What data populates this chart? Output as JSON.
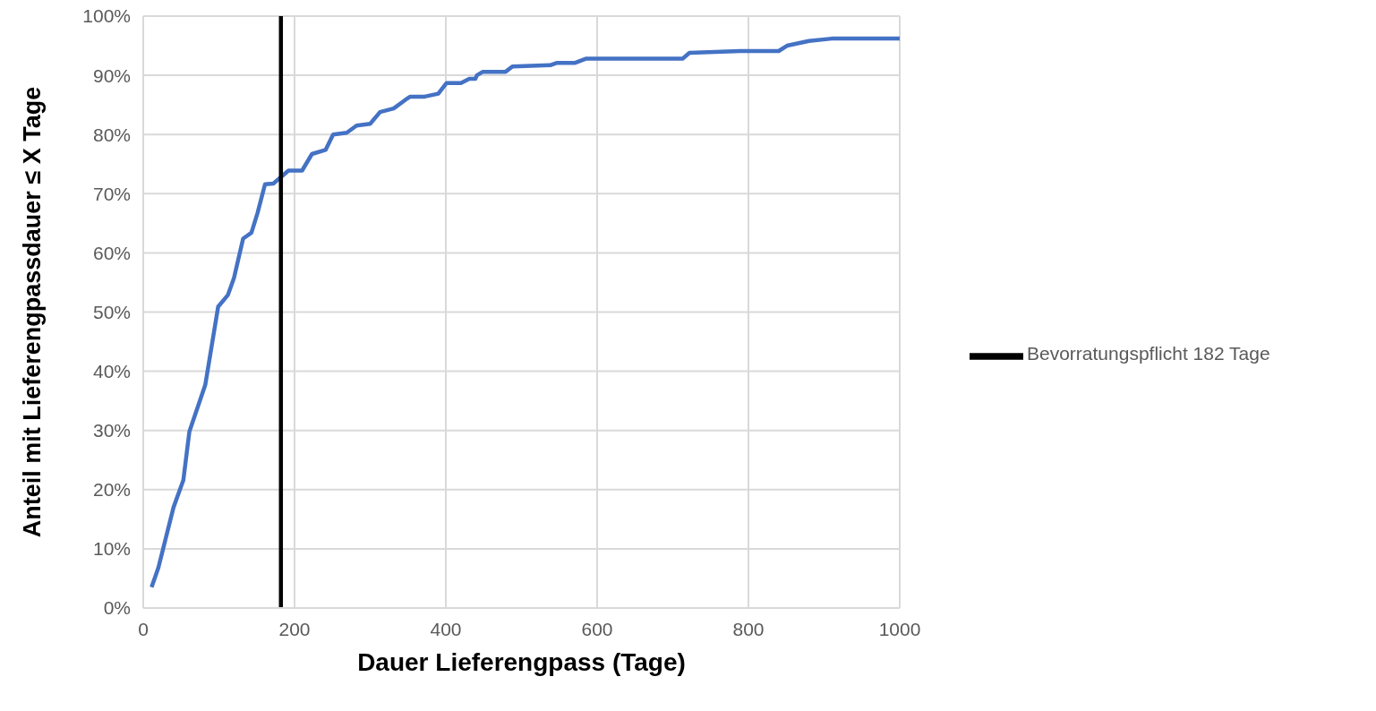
{
  "chart_data": {
    "type": "line",
    "xlabel": "Dauer Lieferengpass (Tage)",
    "ylabel": "Anteil mit Lieferengpassdauer ≤ X Tage",
    "series": [
      {
        "color": "#4472c4",
        "x": [
          11,
          20,
          40,
          53,
          61,
          82,
          99,
          112,
          120,
          132,
          143,
          151,
          161,
          172,
          192,
          210,
          223,
          241,
          251,
          269,
          282,
          300,
          313,
          331,
          347,
          353,
          372,
          390,
          401,
          418,
          420,
          431,
          439,
          441,
          449,
          479,
          488,
          538,
          547,
          571,
          585,
          713,
          722,
          789,
          840,
          851,
          880,
          910,
          1000
        ],
        "values": [
          3.5,
          6.8,
          17.0,
          21.6,
          29.8,
          37.7,
          50.9,
          52.9,
          55.8,
          62.4,
          63.4,
          66.7,
          71.6,
          71.7,
          73.9,
          73.9,
          76.7,
          77.4,
          80.0,
          80.3,
          81.5,
          81.8,
          83.8,
          84.4,
          85.9,
          86.4,
          86.4,
          86.9,
          88.7,
          88.7,
          88.7,
          89.4,
          89.4,
          90.0,
          90.6,
          90.6,
          91.5,
          91.7,
          92.1,
          92.1,
          92.8,
          92.8,
          93.8,
          94.1,
          94.1,
          95.0,
          95.8,
          96.2,
          96.2
        ]
      },
      {
        "name": "Bevorratungspflicht 182 Tage",
        "color": "#000000",
        "x": [
          182,
          182
        ],
        "values": [
          0,
          100
        ]
      }
    ],
    "xlim": [
      0,
      1000
    ],
    "xticks": [
      0,
      200,
      400,
      600,
      800,
      1000
    ],
    "ylim": [
      0,
      100
    ],
    "yticks": [
      {
        "value": 0,
        "label": "0%"
      },
      {
        "value": 10,
        "label": "10%"
      },
      {
        "value": 20,
        "label": "20%"
      },
      {
        "value": 30,
        "label": "30%"
      },
      {
        "value": 40,
        "label": "40%"
      },
      {
        "value": 50,
        "label": "50%"
      },
      {
        "value": 60,
        "label": "60%"
      },
      {
        "value": 70,
        "label": "70%"
      },
      {
        "value": 80,
        "label": "80%"
      },
      {
        "value": 90,
        "label": "90%"
      },
      {
        "value": 100,
        "label": "100%"
      }
    ],
    "grid": true,
    "legend": "right",
    "marker": "none",
    "line_style": "solid"
  }
}
